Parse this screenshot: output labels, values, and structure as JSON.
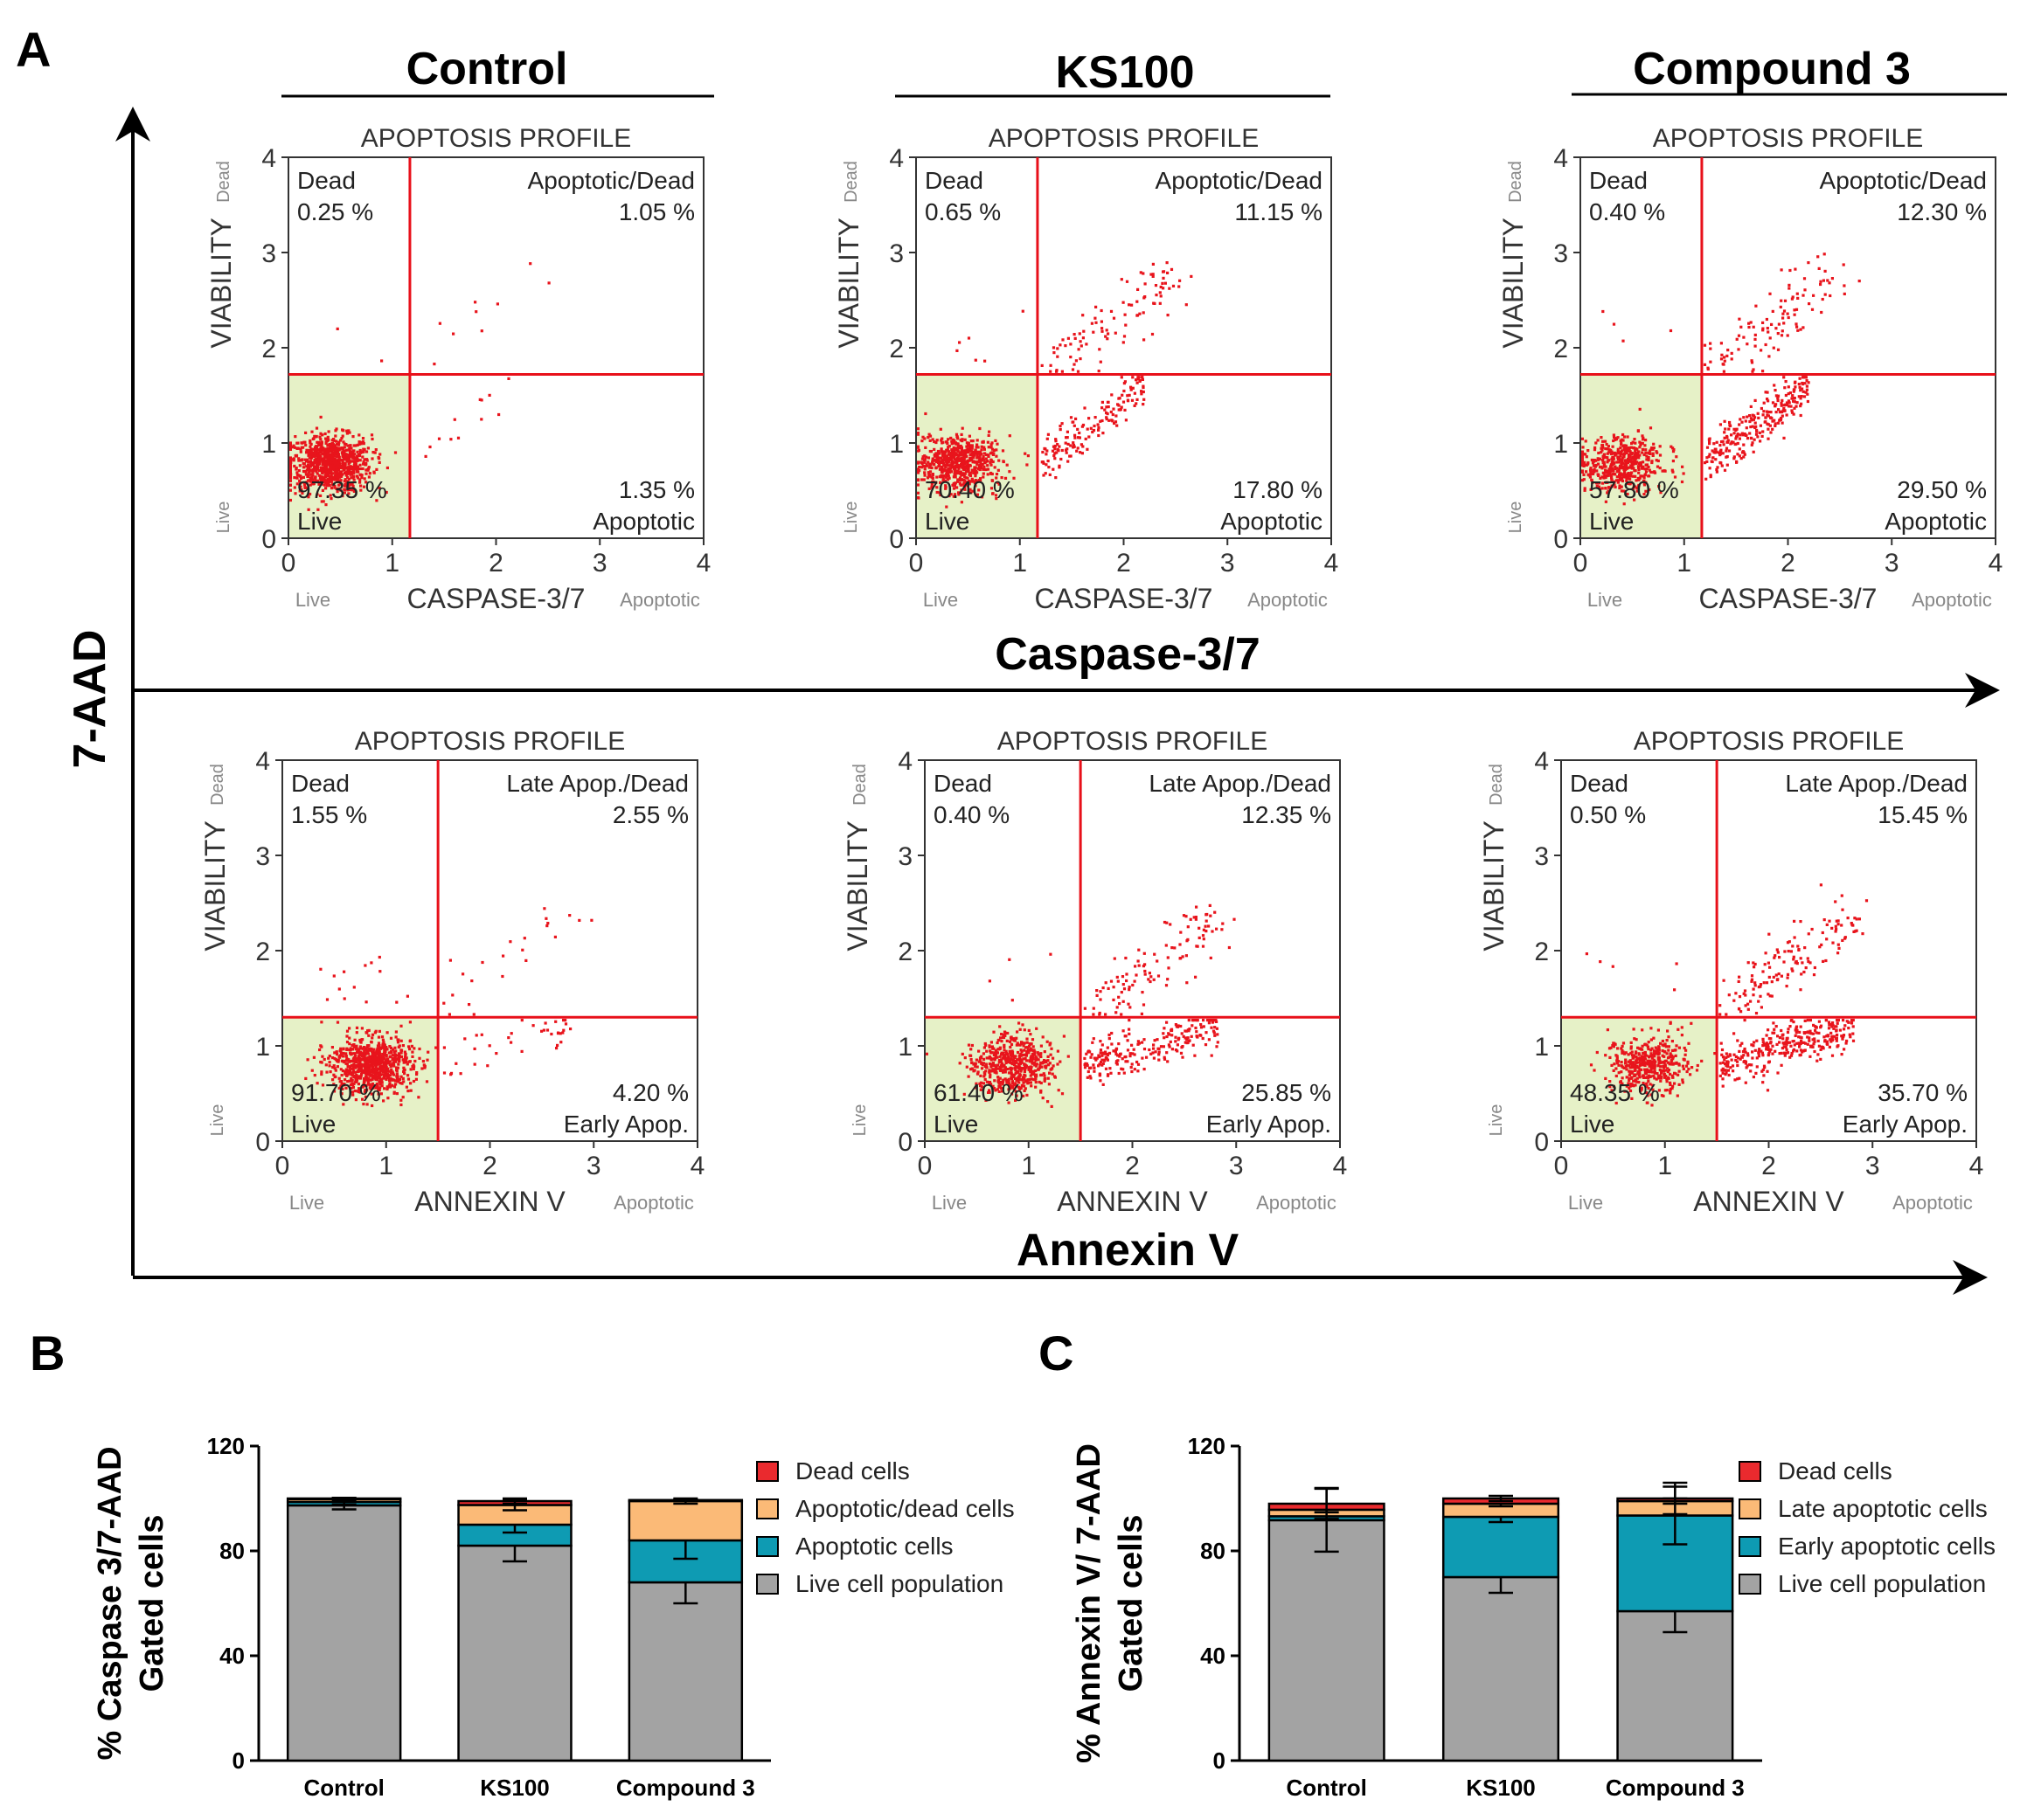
{
  "panel_labels": {
    "a": "A",
    "b": "B",
    "c": "C"
  },
  "group_headers": [
    "Control",
    "KS100",
    "Compound 3"
  ],
  "axes_labels": {
    "y_main": "7-AAD",
    "x_top": "Caspase-3/7",
    "x_bottom": "Annexin V"
  },
  "flow_common": {
    "title": "APOPTOSIS PROFILE",
    "ylabel": "VIABILITY",
    "ticks": [
      "0",
      "1",
      "2",
      "3",
      "4"
    ],
    "side_dead": "Dead",
    "side_live": "Live",
    "bottom_live": "Live",
    "bottom_apoptotic": "Apoptotic",
    "q_dead": "Dead",
    "q_live": "Live",
    "colors": {
      "dot": "#e8141c",
      "gate": "#e8101a",
      "live_fill": "#e6f1c7"
    }
  },
  "flow_rows": [
    {
      "xlabel": "CASPASE-3/7",
      "q_tr_label": "Apoptotic/Dead",
      "q_br_label": "Apoptotic",
      "gate": {
        "x": 1.17,
        "y": 1.72
      },
      "plots": [
        {
          "dead": "0.25 %",
          "tr": "1.05 %",
          "live": "97.35 %",
          "br": "1.35 %"
        },
        {
          "dead": "0.65 %",
          "tr": "11.15 %",
          "live": "70.40 %",
          "br": "17.80 %"
        },
        {
          "dead": "0.40 %",
          "tr": "12.30 %",
          "live": "57.80 %",
          "br": "29.50 %"
        }
      ]
    },
    {
      "xlabel": "ANNEXIN V",
      "q_tr_label": "Late Apop./Dead",
      "q_br_label": "Early Apop.",
      "gate": {
        "x": 1.5,
        "y": 1.3
      },
      "plots": [
        {
          "dead": "1.55 %",
          "tr": "2.55 %",
          "live": "91.70 %",
          "br": "4.20 %"
        },
        {
          "dead": "0.40 %",
          "tr": "12.35 %",
          "live": "61.40 %",
          "br": "25.85 %"
        },
        {
          "dead": "0.50 %",
          "tr": "15.45 %",
          "live": "48.35 %",
          "br": "35.70 %"
        }
      ]
    }
  ],
  "chart_data": [
    {
      "type": "bar",
      "stacked": true,
      "ylabel_line1": "% Caspase 3/7-AAD",
      "ylabel_line2": "Gated cells",
      "ylim": [
        0,
        120
      ],
      "yticks": [
        0,
        40,
        80,
        120
      ],
      "categories": [
        "Control",
        "KS100",
        "Compound 3"
      ],
      "series": [
        {
          "name": "Live cell population",
          "color": "#a3a3a3",
          "values": [
            97.35,
            82.0,
            68.0
          ],
          "errors": [
            1.5,
            6,
            8
          ]
        },
        {
          "name": "Apoptotic cells",
          "color": "#0e9bb3",
          "values": [
            1.35,
            8.0,
            16.0
          ],
          "errors": [
            1,
            3,
            7
          ]
        },
        {
          "name": "Apoptotic/dead cells",
          "color": "#fbba77",
          "values": [
            1.05,
            7.5,
            15.0
          ],
          "errors": [
            0.5,
            2,
            1
          ]
        },
        {
          "name": "Dead cells",
          "color": "#ea2a2e",
          "values": [
            0.25,
            1.5,
            0.4
          ],
          "errors": [
            0.2,
            1,
            0.2
          ]
        }
      ],
      "legend": [
        "Dead cells",
        "Apoptotic/dead cells",
        "Apoptotic cells",
        "Live cell population"
      ]
    },
    {
      "type": "bar",
      "stacked": true,
      "ylabel_line1": "% Annexin V/ 7-AAD",
      "ylabel_line2": "Gated cells",
      "ylim": [
        0,
        120
      ],
      "yticks": [
        0,
        40,
        80,
        120
      ],
      "categories": [
        "Control",
        "KS100",
        "Compound 3"
      ],
      "series": [
        {
          "name": "Live cell population",
          "color": "#a3a3a3",
          "values": [
            91.7,
            70.0,
            57.0
          ],
          "errors": [
            12,
            6,
            8
          ]
        },
        {
          "name": "Early apoptotic cells",
          "color": "#0e9bb3",
          "values": [
            1.5,
            23.0,
            36.5
          ],
          "errors": [
            1,
            2,
            11
          ]
        },
        {
          "name": "Late apoptotic cells",
          "color": "#fbba77",
          "values": [
            2.5,
            5.0,
            5.5
          ],
          "errors": [
            1,
            1,
            1
          ]
        },
        {
          "name": "Dead cells",
          "color": "#ea2a2e",
          "values": [
            2.3,
            2.0,
            1.0
          ],
          "errors": [
            6,
            1,
            6
          ]
        }
      ],
      "legend": [
        "Dead cells",
        "Late apoptotic cells",
        "Early apoptotic cells",
        "Live cell population"
      ]
    }
  ]
}
